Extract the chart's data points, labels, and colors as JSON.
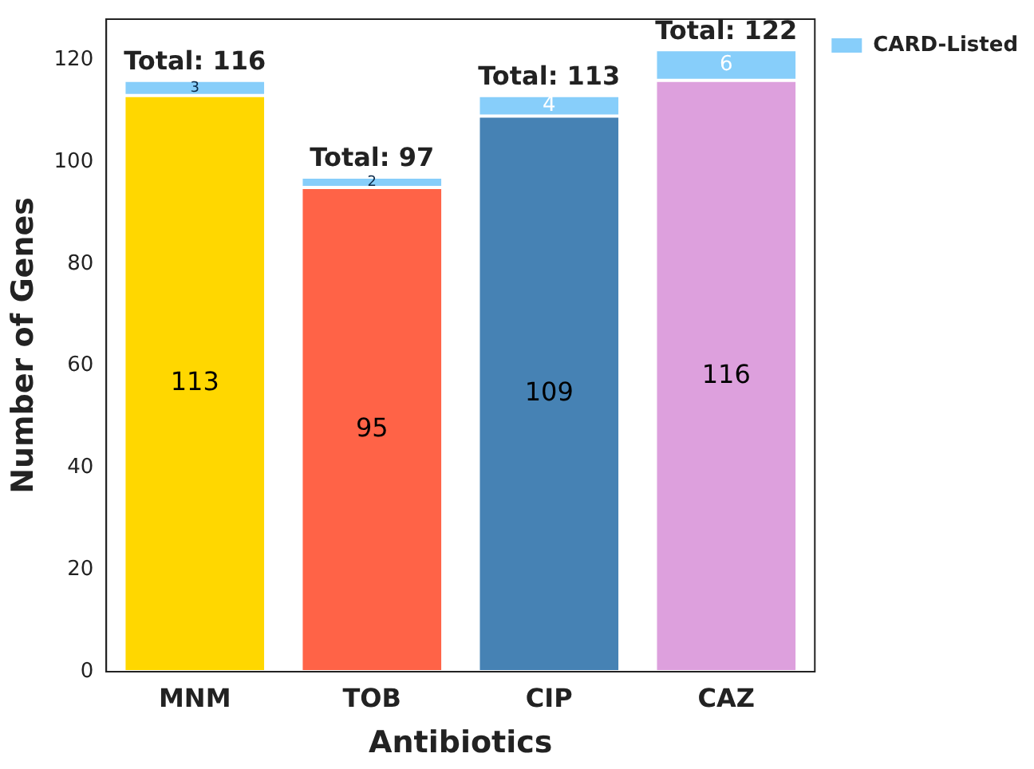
{
  "chart_data": {
    "type": "bar",
    "stacked": true,
    "xlabel": "Antibiotics",
    "ylabel": "Number of Genes",
    "categories": [
      "MNM",
      "TOB",
      "CIP",
      "CAZ"
    ],
    "series": [
      {
        "colors": [
          "#ffd700",
          "#ff6347",
          "#4682b4",
          "#dda0dd"
        ],
        "values": [
          113,
          95,
          109,
          116
        ]
      },
      {
        "name": "CARD-Listed",
        "color": "#87cefa",
        "values": [
          3,
          2,
          4,
          6
        ]
      }
    ],
    "totals": [
      "Total: 116",
      "Total: 97",
      "Total: 113",
      "Total: 122"
    ],
    "data_labels": true,
    "ylim": [
      0,
      128
    ],
    "yticks": [
      0,
      20,
      40,
      60,
      80,
      100,
      120
    ],
    "grid": false,
    "legend": "top right"
  }
}
